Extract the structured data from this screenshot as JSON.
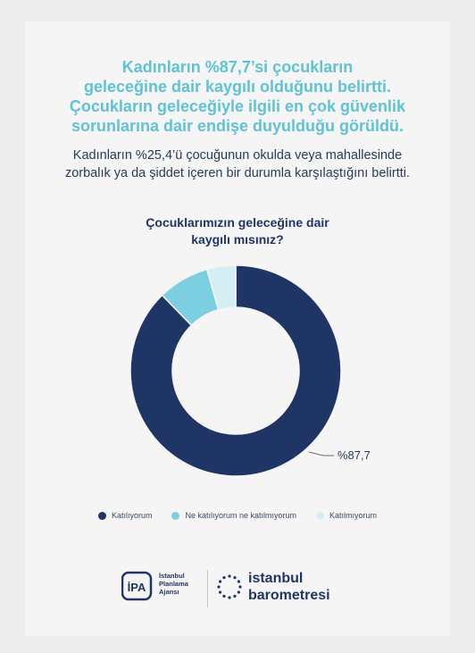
{
  "headline": {
    "lines": [
      "Kadınların %87,7’si çocukların",
      "geleceğine dair kaygılı olduğunu belirtti.",
      "Çocukların geleceğiyle ilgili en çok güvenlik",
      "sorunlarına dair endişe duyulduğu görüldü."
    ]
  },
  "subline": {
    "lines": [
      "Kadınların %25,4’ü çocuğunun okulda veya mahallesinde",
      "zorbalık ya da şiddet içeren bir durumla karşılaştığını belirtti."
    ]
  },
  "chart_data": {
    "type": "pie",
    "title_lines": [
      "Çocuklarımızın geleceğine dair",
      "kaygılı mısınız?"
    ],
    "categories": [
      "Katılıyorum",
      "Ne katılıyorum ne katılmıyorum",
      "Katılmıyorum"
    ],
    "values": [
      87.7,
      7.9,
      4.4
    ],
    "colors": [
      "#1f3566",
      "#7ccfe0",
      "#d4eef3"
    ],
    "data_label": "%87,7",
    "legend_position": "bottom"
  },
  "footer": {
    "ipa_lines": [
      "İstanbul",
      "Planlama",
      "Ajansı"
    ],
    "ipa_mark": "İPA",
    "barometre_lines": [
      "istanbul",
      "barometresi"
    ]
  }
}
